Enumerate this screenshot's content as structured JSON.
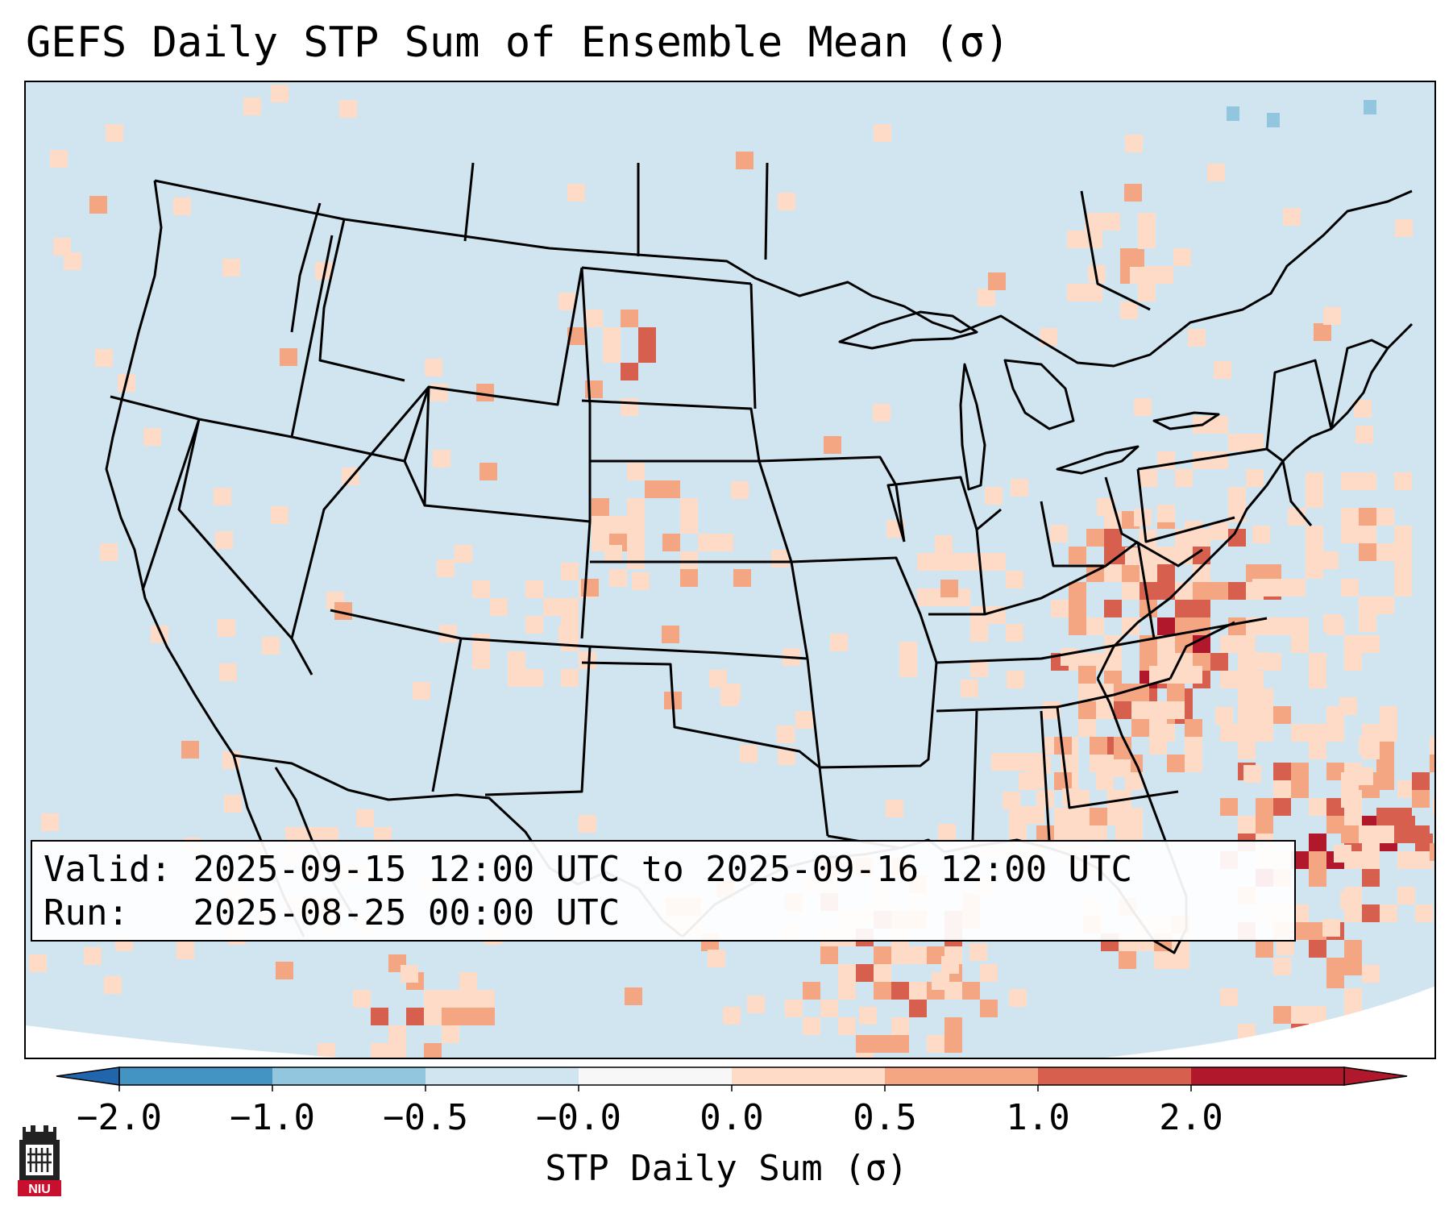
{
  "title": "GEFS Daily STP Sum of Ensemble Mean (σ)",
  "info": {
    "valid_label": "Valid:",
    "valid_value": "2025-09-15 12:00 UTC to 2025-09-16 12:00 UTC",
    "run_label": "Run:",
    "run_value": "2025-08-25 00:00 UTC"
  },
  "colorbar": {
    "label": "STP Daily Sum (σ)",
    "ticks": [
      "−2.0",
      "−1.0",
      "−0.5",
      "−0.0",
      "0.0",
      "0.5",
      "1.0",
      "2.0"
    ],
    "colors": [
      "#2166ac",
      "#4393c3",
      "#92c5de",
      "#d1e5f0",
      "#f7f7f7",
      "#fddbc7",
      "#f4a582",
      "#d6604d",
      "#b2182b"
    ],
    "extend": "both"
  },
  "map": {
    "projection": "Lambert conformal",
    "region": "Contiguous United States, southern Canada, northern Mexico, Gulf of Mexico, western Atlantic",
    "background_color": "#d1e5f0",
    "border_color": "#000000"
  },
  "logo": {
    "text": "NIU",
    "color": "#c8102e"
  }
}
